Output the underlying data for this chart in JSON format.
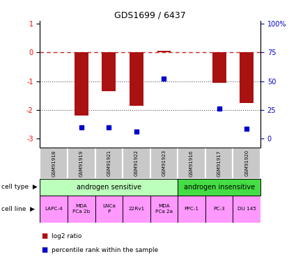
{
  "title": "GDS1699 / 6437",
  "samples": [
    "GSM91918",
    "GSM91919",
    "GSM91921",
    "GSM91922",
    "GSM91923",
    "GSM91916",
    "GSM91917",
    "GSM91920"
  ],
  "log2_ratio": [
    0.0,
    -2.2,
    -1.35,
    -1.85,
    0.05,
    0.0,
    -1.05,
    -1.75
  ],
  "percentile_rank": [
    null,
    -2.6,
    -2.6,
    -2.75,
    -0.9,
    null,
    -1.95,
    -2.65
  ],
  "ylim": [
    -3.3,
    1.1
  ],
  "cell_lines": [
    "LAPC-4",
    "MDA\nPCa 2b",
    "LNCa\nP",
    "22Rv1",
    "MDA\nPCa 2a",
    "PPC-1",
    "PC-3",
    "DU 145"
  ],
  "cell_line_color": "#FF99FF",
  "gsm_bg_color": "#C8C8C8",
  "bar_color": "#AA1111",
  "dot_color": "#0000CC",
  "hline_color": "#CC2222",
  "dotline_color": "#555555",
  "right_axis_color": "#0000CC",
  "cell_type_sensitive_color": "#BBFFBB",
  "cell_type_insensitive_color": "#44DD44",
  "legend_red_label": "log2 ratio",
  "legend_blue_label": "percentile rank within the sample",
  "bar_width": 0.5
}
